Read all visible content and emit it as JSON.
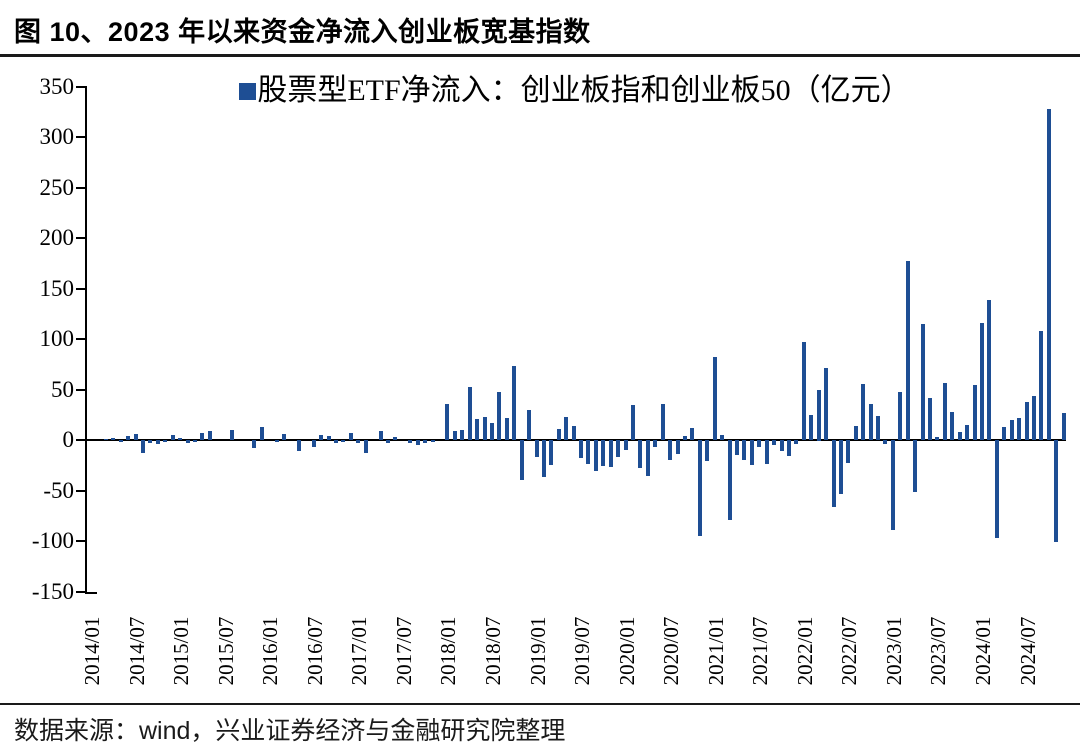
{
  "figure": {
    "title": "图 10、2023 年以来资金净流入创业板宽基指数",
    "source": "数据来源：wind，兴业证券经济与金融研究院整理"
  },
  "chart_data": {
    "type": "bar",
    "title": "图 10、2023 年以来资金净流入创业板宽基指数",
    "legend": "股票型ETF净流入：创业板指和创业板50（亿元）",
    "legend_position": "top-center",
    "unit": "亿元",
    "bar_color": "#1E4E94",
    "axis_color": "#000000",
    "grid": false,
    "xlabel": "",
    "ylabel": "",
    "ylim": [
      -150,
      350
    ],
    "ytick_step": 50,
    "yticks": [
      350,
      300,
      250,
      200,
      150,
      100,
      50,
      0,
      -50,
      -100,
      -150
    ],
    "x_start": "2014/01",
    "x_end": "2024/12",
    "x_tick_every_months": 6,
    "x_tick_labels": [
      "2014/01",
      "2014/07",
      "2015/01",
      "2015/07",
      "2016/01",
      "2016/07",
      "2017/01",
      "2017/07",
      "2018/01",
      "2018/07",
      "2019/01",
      "2019/07",
      "2020/01",
      "2020/07",
      "2021/01",
      "2021/07",
      "2022/01",
      "2022/07",
      "2023/01",
      "2023/07",
      "2024/01",
      "2024/07"
    ],
    "series": [
      {
        "name": "股票型ETF净流入：创业板指和创业板50（亿元）",
        "values": [
          0,
          0,
          1,
          2,
          -2,
          4,
          6,
          -13,
          -3,
          -4,
          -2,
          5,
          2,
          -3,
          -2,
          7,
          9,
          0,
          0,
          10,
          0,
          0,
          -8,
          13,
          0,
          -2,
          6,
          0,
          -11,
          0,
          -7,
          5,
          4,
          -3,
          -2,
          7,
          -3,
          -13,
          0,
          9,
          -3,
          3,
          0,
          -3,
          -5,
          -3,
          -2,
          0,
          36,
          9,
          10,
          52,
          21,
          23,
          17,
          48,
          22,
          73,
          -40,
          30,
          -17,
          -37,
          -25,
          11,
          23,
          14,
          -18,
          -24,
          -31,
          -26,
          -27,
          -17,
          -10,
          35,
          -28,
          -36,
          -7,
          36,
          -20,
          -14,
          4,
          12,
          -95,
          -21,
          82,
          5,
          -79,
          -15,
          -20,
          -25,
          -7,
          -24,
          -5,
          -11,
          -16,
          -4,
          97,
          25,
          50,
          71,
          -66,
          -53,
          -23,
          14,
          55,
          36,
          24,
          -4,
          -89,
          48,
          177,
          -51,
          115,
          42,
          3,
          56,
          28,
          8,
          15,
          54,
          116,
          139,
          -97,
          13,
          20,
          22,
          38,
          44,
          108,
          328,
          -101,
          27
        ]
      }
    ]
  }
}
